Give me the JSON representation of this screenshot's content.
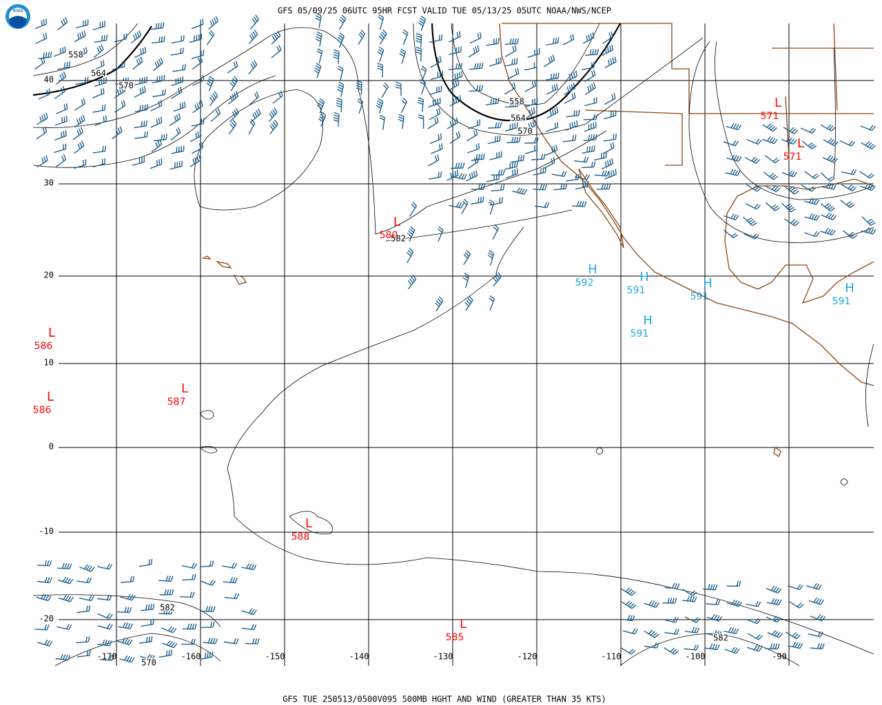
{
  "header": {
    "title": "GFS 05/09/25 06UTC 95HR FCST VALID TUE 05/13/25 05UTC NOAA/NWS/NCEP"
  },
  "footer": {
    "caption": "GFS TUE 250513/0500V095 500MB HGHT AND WIND (GREATER THAN 35 KTS)"
  },
  "logo": {
    "text": "NOAA"
  },
  "latitudes": [
    40,
    30,
    20,
    10,
    0,
    -10,
    -20
  ],
  "longitudes": [
    -170,
    -160,
    -150,
    -140,
    -130,
    -120,
    -110,
    -100,
    -90
  ],
  "contour_labels": [
    558,
    564,
    570,
    558,
    564,
    570,
    582,
    582,
    570,
    582
  ],
  "centers": [
    {
      "letter": "L",
      "value": 580
    },
    {
      "letter": "L",
      "value": 586
    },
    {
      "letter": "L",
      "value": 586
    },
    {
      "letter": "L",
      "value": 587
    },
    {
      "letter": "L",
      "value": 588
    },
    {
      "letter": "L",
      "value": 585
    },
    {
      "letter": "L",
      "value": 571
    },
    {
      "letter": "L",
      "value": 571
    },
    {
      "letter": "H",
      "value": 592
    },
    {
      "letter": "H",
      "value": 591
    },
    {
      "letter": "H",
      "value": 591
    },
    {
      "letter": "H",
      "value": 591
    },
    {
      "letter": "H",
      "value": 591
    }
  ]
}
